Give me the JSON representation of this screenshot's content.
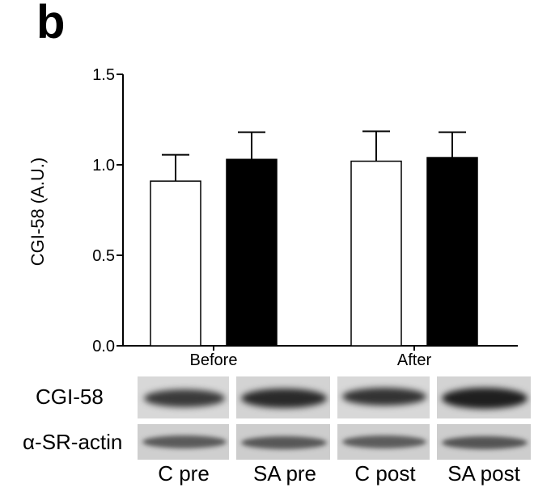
{
  "figure": {
    "panel_label": "b"
  },
  "chart_data": {
    "type": "bar",
    "ylabel": "CGI-58 (A.U.)",
    "ylim": [
      0,
      1.5
    ],
    "yticks": [
      0.0,
      0.5,
      1.0,
      1.5
    ],
    "ytick_labels": [
      "0.0",
      "0.5",
      "1.0",
      "1.5"
    ],
    "categories": [
      "Before",
      "After"
    ],
    "series": [
      {
        "values": [
          0.91,
          1.02
        ],
        "errors": [
          0.145,
          0.165
        ],
        "fill": "#ffffff",
        "stroke": "#000000"
      },
      {
        "values": [
          1.03,
          1.04
        ],
        "errors": [
          0.15,
          0.14
        ],
        "fill": "#000000",
        "stroke": "#000000"
      }
    ],
    "grid": false,
    "legend": "none"
  },
  "western_blot": {
    "rows": [
      {
        "label": "CGI-58",
        "band_intensity": "strong"
      },
      {
        "label": "α-SR-actin",
        "band_intensity": "moderate"
      }
    ],
    "lanes": [
      "C pre",
      "SA pre",
      "C post",
      "SA post"
    ]
  }
}
